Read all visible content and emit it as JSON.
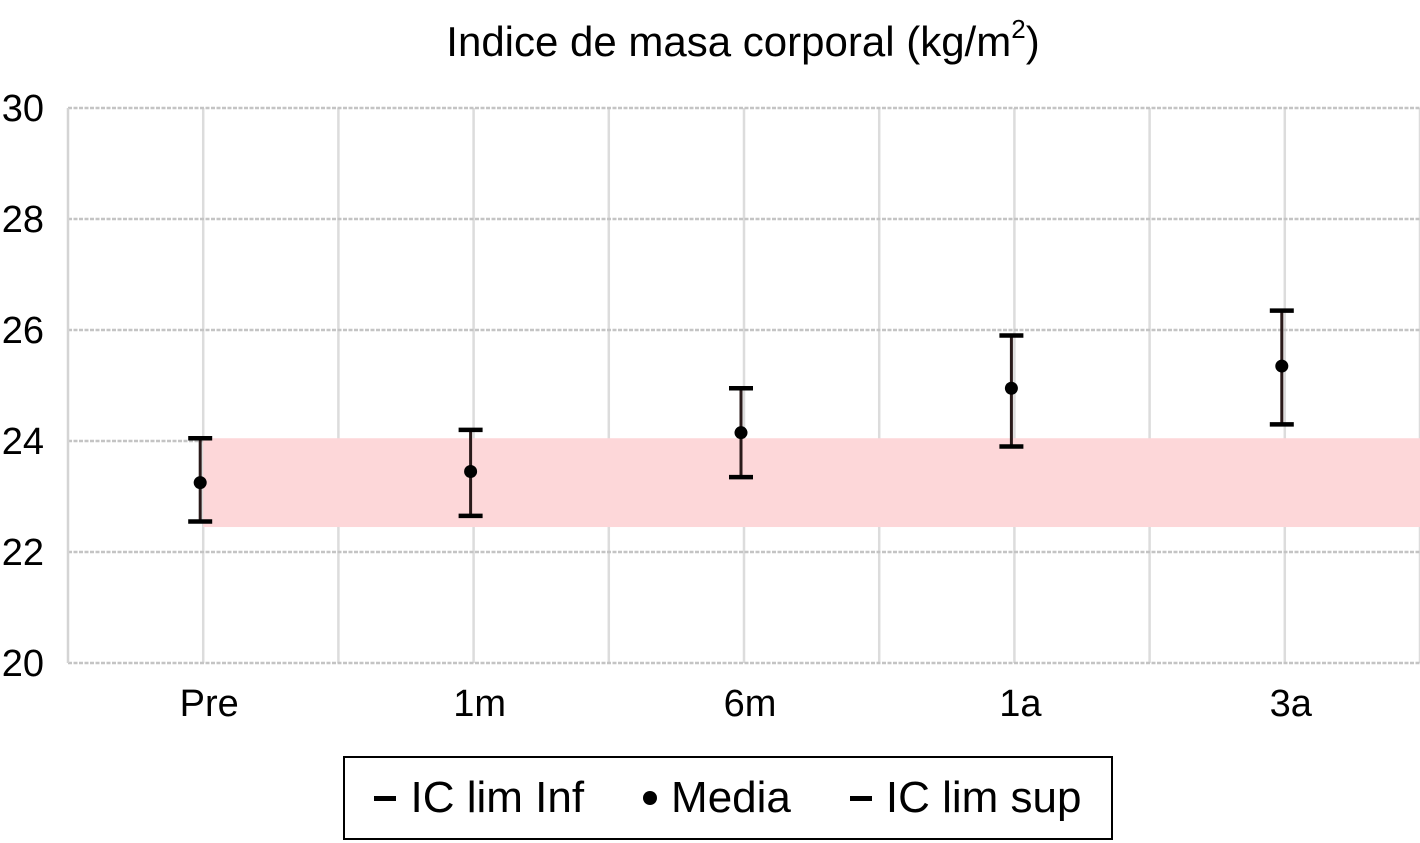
{
  "chart_data": {
    "type": "scatter",
    "title": "Indice de masa corporal (kg/m",
    "title_superscript": "2",
    "title_suffix": ")",
    "categories": [
      "Pre",
      "1m",
      "6m",
      "1a",
      "3a"
    ],
    "yticks": [
      "30",
      "28",
      "26",
      "24",
      "22",
      "20"
    ],
    "ylim": [
      20,
      30
    ],
    "grid": true,
    "series": [
      {
        "name": "IC lim Inf",
        "values": [
          22.55,
          22.65,
          23.35,
          23.9,
          24.3
        ]
      },
      {
        "name": "Media",
        "values": [
          23.25,
          23.45,
          24.15,
          24.95,
          25.35
        ]
      },
      {
        "name": "IC lim sup",
        "values": [
          24.05,
          24.2,
          24.95,
          25.9,
          26.35
        ]
      }
    ],
    "reference_band": {
      "from": 22.45,
      "to": 24.05,
      "color": "#fdd7d9"
    },
    "legend_position": "bottom"
  }
}
